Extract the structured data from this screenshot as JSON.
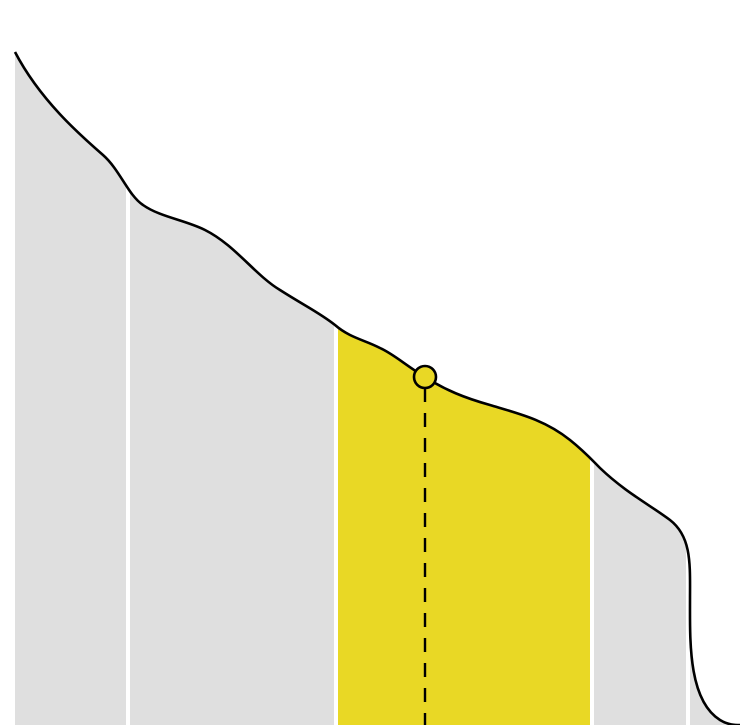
{
  "colors": {
    "band": "#dfdfdf",
    "highlight": "#e9d825",
    "curve": "#000000",
    "marker": "#e9d825",
    "separator": "#ffffff"
  },
  "highlighted_band_index": 2
}
